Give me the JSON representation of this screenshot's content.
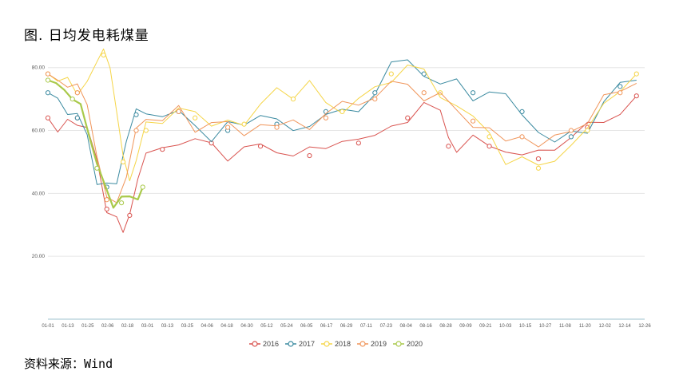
{
  "page": {
    "title": "图. 日均发电耗煤量",
    "source": "资料来源：Wind"
  },
  "chart_data": {
    "type": "line",
    "title": "图. 日均发电耗煤量",
    "xlabel": "",
    "ylabel": "",
    "ylim": [
      0,
      85
    ],
    "y_ticks": [
      "20.00",
      "40.00",
      "60.00",
      "80.00"
    ],
    "x_ticks": [
      "01-01",
      "01-13",
      "01-25",
      "02-06",
      "02-18",
      "03-01",
      "03-13",
      "03-25",
      "04-06",
      "04-18",
      "04-30",
      "05-12",
      "05-24",
      "06-05",
      "06-17",
      "06-29",
      "07-11",
      "07-23",
      "08-04",
      "08-16",
      "08-28",
      "09-09",
      "09-21",
      "10-03",
      "10-15",
      "10-27",
      "11-08",
      "11-20",
      "12-02",
      "12-14",
      "12-26"
    ],
    "grid": true,
    "legend_position": "bottom",
    "series": [
      {
        "name": "2016",
        "color": "#d9534f",
        "width": 1.0,
        "points": [
          [
            0,
            64
          ],
          [
            6,
            60
          ],
          [
            12,
            62
          ],
          [
            18,
            64
          ],
          [
            24,
            62
          ],
          [
            30,
            50
          ],
          [
            36,
            35
          ],
          [
            42,
            30
          ],
          [
            46,
            28
          ],
          [
            50,
            33
          ],
          [
            55,
            45
          ],
          [
            60,
            52
          ],
          [
            70,
            54
          ],
          [
            80,
            58
          ],
          [
            90,
            55
          ],
          [
            100,
            56
          ],
          [
            110,
            52
          ],
          [
            120,
            54
          ],
          [
            130,
            55
          ],
          [
            140,
            53
          ],
          [
            150,
            54
          ],
          [
            160,
            52
          ],
          [
            170,
            55
          ],
          [
            180,
            58
          ],
          [
            190,
            56
          ],
          [
            200,
            58
          ],
          [
            210,
            62
          ],
          [
            220,
            64
          ],
          [
            230,
            66
          ],
          [
            240,
            68
          ],
          [
            245,
            55
          ],
          [
            250,
            54
          ],
          [
            260,
            57
          ],
          [
            270,
            55
          ],
          [
            280,
            54
          ],
          [
            290,
            53
          ],
          [
            300,
            51
          ],
          [
            310,
            56
          ],
          [
            320,
            58
          ],
          [
            330,
            61
          ],
          [
            340,
            63
          ],
          [
            350,
            66
          ],
          [
            360,
            71
          ]
        ]
      },
      {
        "name": "2017",
        "color": "#3a8aa0",
        "width": 1.0,
        "points": [
          [
            0,
            72
          ],
          [
            6,
            68
          ],
          [
            12,
            66
          ],
          [
            18,
            64
          ],
          [
            24,
            60
          ],
          [
            30,
            45
          ],
          [
            36,
            42
          ],
          [
            42,
            44
          ],
          [
            48,
            55
          ],
          [
            54,
            65
          ],
          [
            60,
            67
          ],
          [
            70,
            63
          ],
          [
            80,
            66
          ],
          [
            90,
            62
          ],
          [
            100,
            58
          ],
          [
            110,
            60
          ],
          [
            120,
            63
          ],
          [
            130,
            66
          ],
          [
            140,
            62
          ],
          [
            150,
            60
          ],
          [
            160,
            62
          ],
          [
            170,
            66
          ],
          [
            180,
            64
          ],
          [
            190,
            68
          ],
          [
            200,
            72
          ],
          [
            210,
            80
          ],
          [
            220,
            83
          ],
          [
            230,
            78
          ],
          [
            240,
            75
          ],
          [
            250,
            74
          ],
          [
            260,
            72
          ],
          [
            270,
            72
          ],
          [
            280,
            70
          ],
          [
            290,
            66
          ],
          [
            300,
            60
          ],
          [
            310,
            56
          ],
          [
            320,
            58
          ],
          [
            330,
            62
          ],
          [
            340,
            68
          ],
          [
            350,
            74
          ],
          [
            360,
            76
          ]
        ]
      },
      {
        "name": "2018",
        "color": "#f5d547",
        "width": 1.0,
        "points": [
          [
            0,
            78
          ],
          [
            6,
            76
          ],
          [
            12,
            74
          ],
          [
            18,
            72
          ],
          [
            24,
            75
          ],
          [
            30,
            82
          ],
          [
            34,
            84
          ],
          [
            38,
            78
          ],
          [
            42,
            65
          ],
          [
            46,
            50
          ],
          [
            50,
            45
          ],
          [
            54,
            50
          ],
          [
            60,
            60
          ],
          [
            70,
            64
          ],
          [
            80,
            68
          ],
          [
            90,
            64
          ],
          [
            100,
            62
          ],
          [
            110,
            64
          ],
          [
            120,
            62
          ],
          [
            130,
            66
          ],
          [
            140,
            76
          ],
          [
            150,
            70
          ],
          [
            160,
            74
          ],
          [
            170,
            70
          ],
          [
            180,
            66
          ],
          [
            190,
            70
          ],
          [
            200,
            72
          ],
          [
            210,
            78
          ],
          [
            220,
            80
          ],
          [
            230,
            78
          ],
          [
            240,
            72
          ],
          [
            250,
            68
          ],
          [
            260,
            64
          ],
          [
            270,
            58
          ],
          [
            280,
            52
          ],
          [
            290,
            50
          ],
          [
            300,
            48
          ],
          [
            310,
            52
          ],
          [
            320,
            55
          ],
          [
            330,
            60
          ],
          [
            340,
            68
          ],
          [
            350,
            75
          ],
          [
            360,
            78
          ]
        ]
      },
      {
        "name": "2019",
        "color": "#f0955a",
        "width": 1.0,
        "points": [
          [
            0,
            78
          ],
          [
            6,
            76
          ],
          [
            12,
            75
          ],
          [
            18,
            72
          ],
          [
            24,
            68
          ],
          [
            30,
            52
          ],
          [
            36,
            38
          ],
          [
            42,
            40
          ],
          [
            48,
            45
          ],
          [
            54,
            60
          ],
          [
            60,
            64
          ],
          [
            70,
            63
          ],
          [
            80,
            66
          ],
          [
            90,
            62
          ],
          [
            100,
            62
          ],
          [
            110,
            61
          ],
          [
            120,
            60
          ],
          [
            130,
            62
          ],
          [
            140,
            61
          ],
          [
            150,
            62
          ],
          [
            160,
            63
          ],
          [
            170,
            64
          ],
          [
            180,
            68
          ],
          [
            190,
            70
          ],
          [
            200,
            70
          ],
          [
            210,
            75
          ],
          [
            220,
            74
          ],
          [
            230,
            72
          ],
          [
            240,
            70
          ],
          [
            250,
            66
          ],
          [
            260,
            63
          ],
          [
            270,
            60
          ],
          [
            280,
            56
          ],
          [
            290,
            58
          ],
          [
            300,
            57
          ],
          [
            310,
            56
          ],
          [
            320,
            60
          ],
          [
            330,
            64
          ],
          [
            340,
            70
          ],
          [
            350,
            72
          ],
          [
            360,
            75
          ]
        ]
      },
      {
        "name": "2020",
        "color": "#a9c94a",
        "width": 2.2,
        "points": [
          [
            0,
            76
          ],
          [
            5,
            74
          ],
          [
            10,
            73
          ],
          [
            15,
            70
          ],
          [
            20,
            68
          ],
          [
            25,
            60
          ],
          [
            30,
            48
          ],
          [
            35,
            42
          ],
          [
            40,
            38
          ],
          [
            45,
            37
          ],
          [
            50,
            38
          ],
          [
            55,
            41
          ],
          [
            58,
            42
          ]
        ]
      }
    ]
  }
}
